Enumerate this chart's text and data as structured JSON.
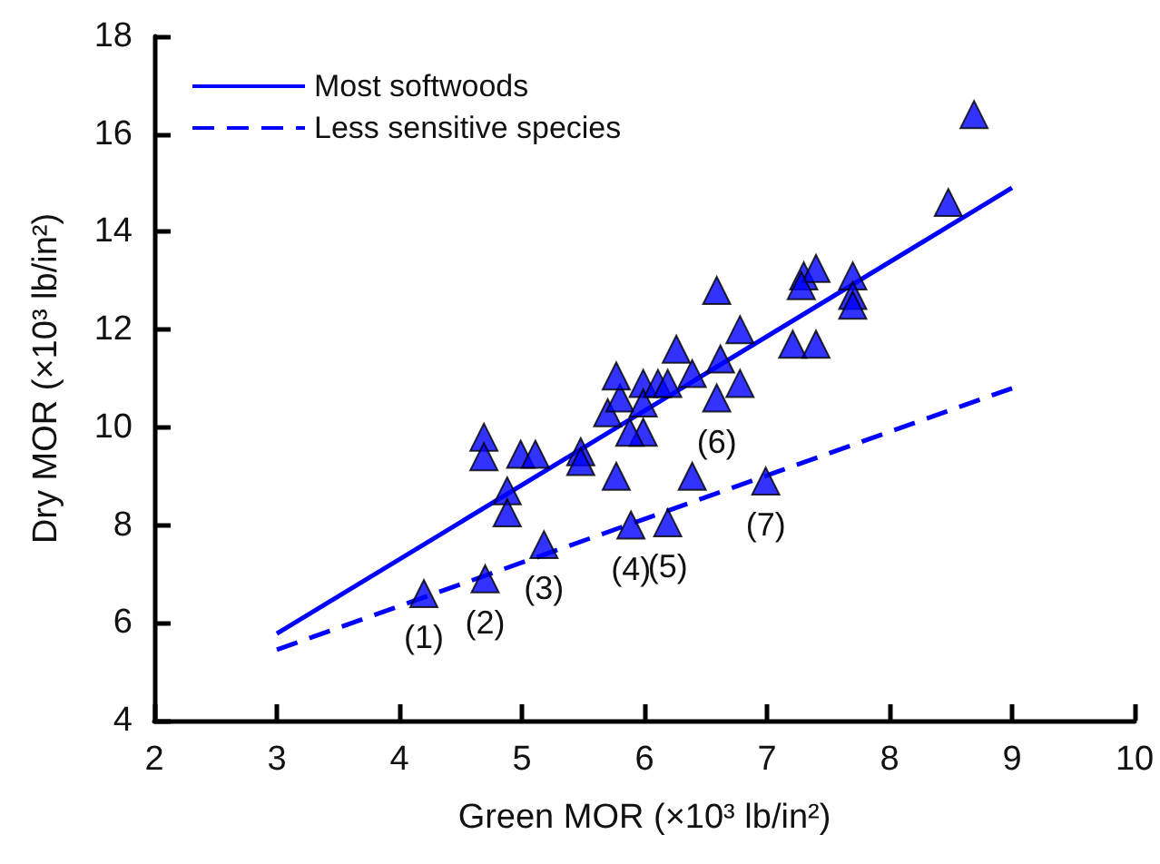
{
  "chart_data": {
    "type": "scatter",
    "xlabel": "Green MOR (×10³ lb/in²)",
    "ylabel": "Dry MOR (×10³ lb/in²)",
    "xlim": [
      2,
      10
    ],
    "xticks": [
      2,
      3,
      4,
      5,
      6,
      7,
      8,
      9,
      10
    ],
    "ylim": [
      4,
      18
    ],
    "yticks": [
      4,
      6,
      8,
      10,
      12,
      14,
      16,
      18
    ],
    "grid": false,
    "legend": "top left",
    "series": [
      {
        "color": "#0000ff",
        "marker": "triangle",
        "x": [
          4.2,
          4.7,
          5.18,
          5.89,
          6.19,
          6.39,
          6.99,
          4.69,
          4.69,
          4.99,
          5.11,
          4.88,
          4.88,
          5.48,
          5.48,
          5.77,
          5.7,
          5.8,
          5.77,
          5.99,
          5.99,
          5.99,
          5.88,
          6.11,
          6.19,
          6.39,
          6.26,
          6.59,
          6.62,
          6.78,
          6.78,
          6.59,
          7.21,
          7.4,
          7.3,
          7.4,
          7.28,
          7.7,
          7.7,
          7.7,
          8.48,
          8.69
        ],
        "values": [
          6.6,
          6.9,
          7.6,
          8.0,
          8.05,
          9.0,
          8.9,
          9.8,
          9.4,
          9.45,
          9.45,
          8.7,
          8.25,
          9.5,
          9.3,
          9.0,
          10.3,
          10.6,
          11.05,
          10.9,
          10.5,
          9.9,
          9.9,
          10.9,
          10.9,
          11.1,
          11.6,
          12.8,
          11.4,
          12.0,
          10.9,
          10.6,
          11.7,
          11.7,
          13.1,
          13.25,
          12.9,
          13.1,
          12.7,
          12.5,
          14.6,
          16.4
        ],
        "name": null
      },
      {
        "type": "line",
        "name": "Most softwoods",
        "color": "#0000ff",
        "marker": "none",
        "line_style": "solid",
        "x": [
          3,
          9
        ],
        "values": [
          5.78,
          14.9
        ]
      },
      {
        "type": "line",
        "name": "Less sensitive species",
        "color": "#0000ff",
        "marker": "none",
        "line_style": "dashed",
        "x": [
          3,
          9
        ],
        "values": [
          5.45,
          10.8
        ]
      }
    ],
    "annotations": [
      {
        "text": "(1)",
        "x": 4.2,
        "y": 6.6
      },
      {
        "text": "(2)",
        "x": 4.7,
        "y": 6.9
      },
      {
        "text": "(3)",
        "x": 5.18,
        "y": 7.6
      },
      {
        "text": "(4)",
        "x": 5.89,
        "y": 8.0
      },
      {
        "text": "(5)",
        "x": 6.19,
        "y": 8.05
      },
      {
        "text": "(6)",
        "x": 6.59,
        "y": 10.6
      },
      {
        "text": "(7)",
        "x": 6.99,
        "y": 8.9
      }
    ]
  }
}
